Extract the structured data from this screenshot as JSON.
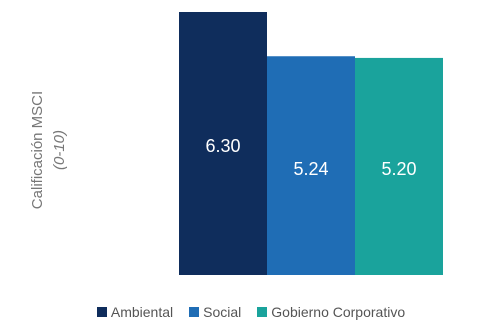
{
  "chart_data": {
    "type": "bar",
    "ylabel": "Calificación MSCI",
    "ylabel_sub": "(0-10)",
    "ylim": [
      0,
      10
    ],
    "grid": false,
    "legend_position": "bottom",
    "series": [
      {
        "name": "Ambiental",
        "value": 6.3,
        "label": "6.30",
        "color": "#0f2d5c"
      },
      {
        "name": "Social",
        "value": 5.24,
        "label": "5.24",
        "color": "#1f6db5"
      },
      {
        "name": "Gobierno Corporativo",
        "value": 5.2,
        "label": "5.20",
        "color": "#1aa39c"
      }
    ]
  }
}
